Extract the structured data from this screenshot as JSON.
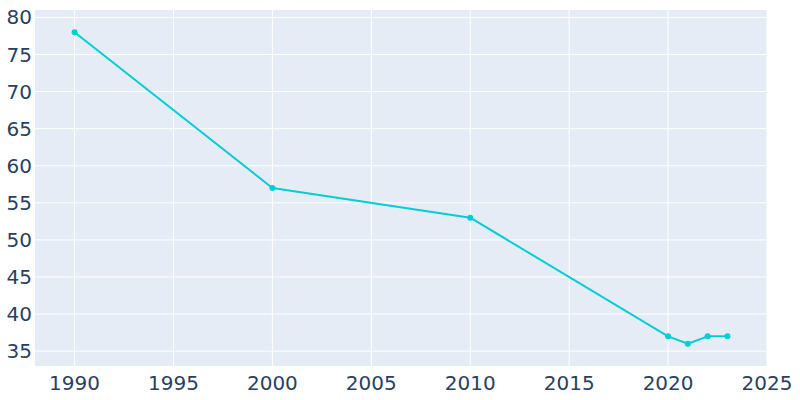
{
  "chart_data": {
    "type": "line",
    "x": [
      1990,
      2000,
      2010,
      2020,
      2021,
      2022,
      2023
    ],
    "values": [
      78,
      57,
      53,
      37,
      36,
      37,
      37
    ],
    "color": "#00ced1",
    "marker": "circle",
    "xlim": [
      1988,
      2025
    ],
    "xticks": [
      1990,
      1995,
      2000,
      2005,
      2010,
      2015,
      2020,
      2025
    ],
    "ylim": [
      33,
      81
    ],
    "yticks": [
      35,
      40,
      45,
      50,
      55,
      60,
      65,
      70,
      75,
      80
    ],
    "grid": true
  }
}
